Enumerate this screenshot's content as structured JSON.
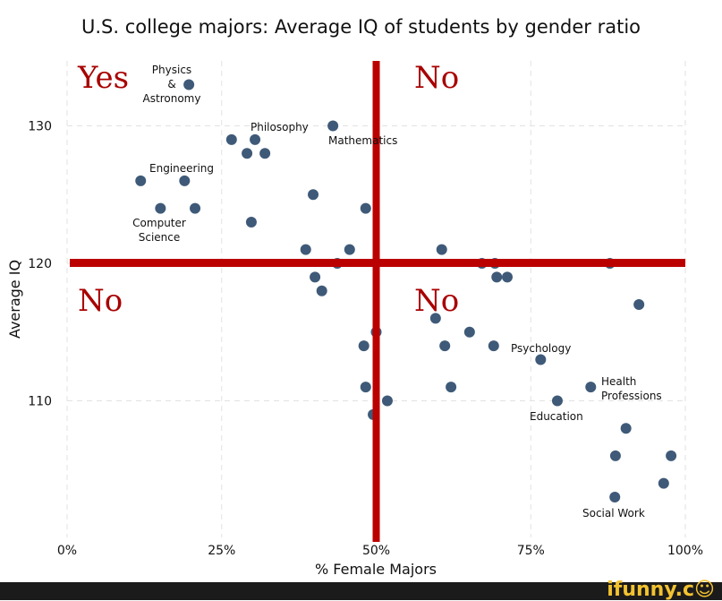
{
  "chart_data": {
    "type": "scatter",
    "title": "U.S. college majors: Average IQ of students by gender ratio",
    "xlabel": "% Female Majors",
    "ylabel": "Average IQ",
    "xlim": [
      0,
      100
    ],
    "ylim": [
      100,
      135
    ],
    "x_ticks": [
      0,
      25,
      50,
      75,
      100
    ],
    "x_tick_labels": [
      "0%",
      "25%",
      "50%",
      "75%",
      "100%"
    ],
    "y_ticks": [
      110,
      120,
      130
    ],
    "y_tick_labels": [
      "110",
      "120",
      "130"
    ],
    "grid": true,
    "point_color": "#3f5a78",
    "reference_line_color": "#bb0000",
    "reference_lines": {
      "x": 50,
      "y": 120
    },
    "quadrant_labels": {
      "top_left": "Yes",
      "top_right": "No",
      "bottom_left": "No",
      "bottom_right": "No"
    },
    "points": [
      [
        19.7,
        133
      ],
      [
        26.6,
        129
      ],
      [
        30.4,
        129
      ],
      [
        29.1,
        128
      ],
      [
        32.0,
        128
      ],
      [
        43.0,
        130
      ],
      [
        11.9,
        126
      ],
      [
        19.0,
        126
      ],
      [
        15.1,
        124
      ],
      [
        20.7,
        124
      ],
      [
        39.8,
        125
      ],
      [
        48.3,
        124
      ],
      [
        29.8,
        123
      ],
      [
        38.6,
        121
      ],
      [
        45.7,
        121
      ],
      [
        60.6,
        121
      ],
      [
        43.7,
        120
      ],
      [
        67.1,
        120
      ],
      [
        69.2,
        120
      ],
      [
        87.8,
        120
      ],
      [
        40.1,
        119
      ],
      [
        69.5,
        119
      ],
      [
        71.2,
        119
      ],
      [
        41.2,
        118
      ],
      [
        92.5,
        117
      ],
      [
        59.6,
        116
      ],
      [
        50.0,
        115
      ],
      [
        65.1,
        115
      ],
      [
        48.0,
        114
      ],
      [
        61.1,
        114
      ],
      [
        69.0,
        114
      ],
      [
        76.6,
        113
      ],
      [
        48.3,
        111
      ],
      [
        62.1,
        111
      ],
      [
        84.7,
        111
      ],
      [
        51.8,
        110
      ],
      [
        79.3,
        110
      ],
      [
        49.5,
        109
      ],
      [
        90.4,
        108
      ],
      [
        88.7,
        106
      ],
      [
        97.7,
        106
      ],
      [
        96.5,
        104
      ],
      [
        88.6,
        103
      ]
    ],
    "annotations": [
      {
        "text": [
          "Physics",
          "&",
          "Astronomy"
        ]
      },
      {
        "text": [
          "Philosophy"
        ]
      },
      {
        "text": [
          "Mathematics"
        ]
      },
      {
        "text": [
          "Engineering"
        ]
      },
      {
        "text": [
          "Computer",
          "Science"
        ]
      },
      {
        "text": [
          "Psychology"
        ]
      },
      {
        "text": [
          "Health",
          "Professions"
        ]
      },
      {
        "text": [
          "Education"
        ]
      },
      {
        "text": [
          "Social Work"
        ]
      }
    ]
  },
  "watermark": "ifunny.co"
}
